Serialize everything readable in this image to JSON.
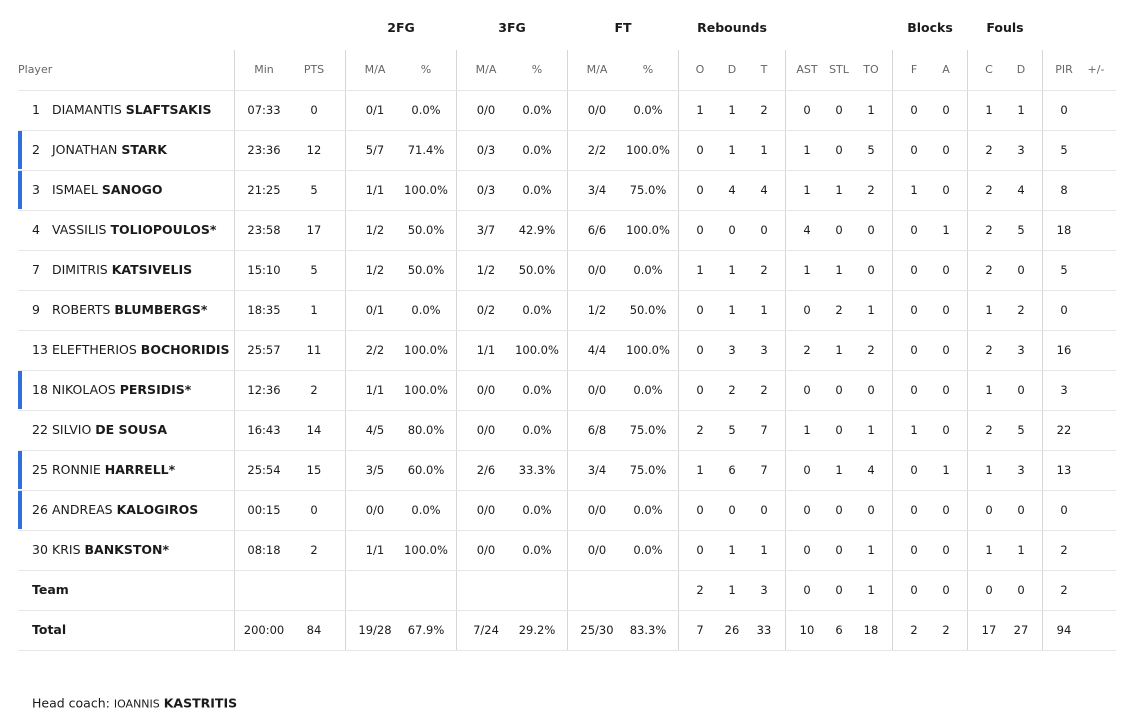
{
  "table": {
    "group_headers": [
      "2FG",
      "3FG",
      "FT",
      "Rebounds",
      "Blocks",
      "Fouls"
    ],
    "columns": [
      "Player",
      "Min",
      "PTS",
      "M/A",
      "%",
      "M/A",
      "%",
      "M/A",
      "%",
      "O",
      "D",
      "T",
      "AST",
      "STL",
      "TO",
      "F",
      "A",
      "C",
      "D",
      "PIR",
      "+/-"
    ],
    "rows": [
      {
        "number": "1",
        "first": "DIAMANTIS",
        "last": "SLAFTSAKIS",
        "highlight": false,
        "cells": [
          "07:33",
          "0",
          "0/1",
          "0.0%",
          "0/0",
          "0.0%",
          "0/0",
          "0.0%",
          "1",
          "1",
          "2",
          "0",
          "0",
          "1",
          "0",
          "0",
          "1",
          "1",
          "0"
        ]
      },
      {
        "number": "2",
        "first": "JONATHAN",
        "last": "STARK",
        "highlight": true,
        "cells": [
          "23:36",
          "12",
          "5/7",
          "71.4%",
          "0/3",
          "0.0%",
          "2/2",
          "100.0%",
          "0",
          "1",
          "1",
          "1",
          "0",
          "5",
          "0",
          "0",
          "2",
          "3",
          "5"
        ]
      },
      {
        "number": "3",
        "first": "ISMAEL",
        "last": "SANOGO",
        "highlight": true,
        "cells": [
          "21:25",
          "5",
          "1/1",
          "100.0%",
          "0/3",
          "0.0%",
          "3/4",
          "75.0%",
          "0",
          "4",
          "4",
          "1",
          "1",
          "2",
          "1",
          "0",
          "2",
          "4",
          "8"
        ]
      },
      {
        "number": "4",
        "first": "VASSILIS",
        "last": "TOLIOPOULOS*",
        "highlight": false,
        "cells": [
          "23:58",
          "17",
          "1/2",
          "50.0%",
          "3/7",
          "42.9%",
          "6/6",
          "100.0%",
          "0",
          "0",
          "0",
          "4",
          "0",
          "0",
          "0",
          "1",
          "2",
          "5",
          "18"
        ]
      },
      {
        "number": "7",
        "first": "DIMITRIS",
        "last": "KATSIVELIS",
        "highlight": false,
        "cells": [
          "15:10",
          "5",
          "1/2",
          "50.0%",
          "1/2",
          "50.0%",
          "0/0",
          "0.0%",
          "1",
          "1",
          "2",
          "1",
          "1",
          "0",
          "0",
          "0",
          "2",
          "0",
          "5"
        ]
      },
      {
        "number": "9",
        "first": "ROBERTS",
        "last": "BLUMBERGS*",
        "highlight": false,
        "cells": [
          "18:35",
          "1",
          "0/1",
          "0.0%",
          "0/2",
          "0.0%",
          "1/2",
          "50.0%",
          "0",
          "1",
          "1",
          "0",
          "2",
          "1",
          "0",
          "0",
          "1",
          "2",
          "0"
        ]
      },
      {
        "number": "13",
        "first": "ELEFTHERIOS",
        "last": "BOCHORIDIS",
        "highlight": false,
        "cells": [
          "25:57",
          "11",
          "2/2",
          "100.0%",
          "1/1",
          "100.0%",
          "4/4",
          "100.0%",
          "0",
          "3",
          "3",
          "2",
          "1",
          "2",
          "0",
          "0",
          "2",
          "3",
          "16"
        ]
      },
      {
        "number": "18",
        "first": "NIKOLAOS",
        "last": "PERSIDIS*",
        "highlight": true,
        "cells": [
          "12:36",
          "2",
          "1/1",
          "100.0%",
          "0/0",
          "0.0%",
          "0/0",
          "0.0%",
          "0",
          "2",
          "2",
          "0",
          "0",
          "0",
          "0",
          "0",
          "1",
          "0",
          "3"
        ]
      },
      {
        "number": "22",
        "first": "SILVIO",
        "last": "DE SOUSA",
        "highlight": false,
        "cells": [
          "16:43",
          "14",
          "4/5",
          "80.0%",
          "0/0",
          "0.0%",
          "6/8",
          "75.0%",
          "2",
          "5",
          "7",
          "1",
          "0",
          "1",
          "1",
          "0",
          "2",
          "5",
          "22"
        ]
      },
      {
        "number": "25",
        "first": "RONNIE",
        "last": "HARRELL*",
        "highlight": true,
        "cells": [
          "25:54",
          "15",
          "3/5",
          "60.0%",
          "2/6",
          "33.3%",
          "3/4",
          "75.0%",
          "1",
          "6",
          "7",
          "0",
          "1",
          "4",
          "0",
          "1",
          "1",
          "3",
          "13"
        ]
      },
      {
        "number": "26",
        "first": "ANDREAS",
        "last": "KALOGIROS",
        "highlight": true,
        "cells": [
          "00:15",
          "0",
          "0/0",
          "0.0%",
          "0/0",
          "0.0%",
          "0/0",
          "0.0%",
          "0",
          "0",
          "0",
          "0",
          "0",
          "0",
          "0",
          "0",
          "0",
          "0",
          "0"
        ]
      },
      {
        "number": "30",
        "first": "KRIS",
        "last": "BANKSTON*",
        "highlight": false,
        "cells": [
          "08:18",
          "2",
          "1/1",
          "100.0%",
          "0/0",
          "0.0%",
          "0/0",
          "0.0%",
          "0",
          "1",
          "1",
          "0",
          "0",
          "1",
          "0",
          "0",
          "1",
          "1",
          "2"
        ]
      }
    ],
    "team": {
      "label": "Team",
      "cells": [
        null,
        null,
        null,
        null,
        null,
        null,
        null,
        null,
        "2",
        "1",
        "3",
        "0",
        "0",
        "1",
        "0",
        "0",
        "0",
        "0",
        "2"
      ]
    },
    "total": {
      "label": "Total",
      "cells": [
        "200:00",
        "84",
        "19/28",
        "67.9%",
        "7/24",
        "29.2%",
        "25/30",
        "83.3%",
        "7",
        "26",
        "33",
        "10",
        "6",
        "18",
        "2",
        "2",
        "17",
        "27",
        "94"
      ]
    }
  },
  "footer": {
    "label": "Head coach:",
    "first": "IOANNIS",
    "last": "KASTRITIS"
  }
}
